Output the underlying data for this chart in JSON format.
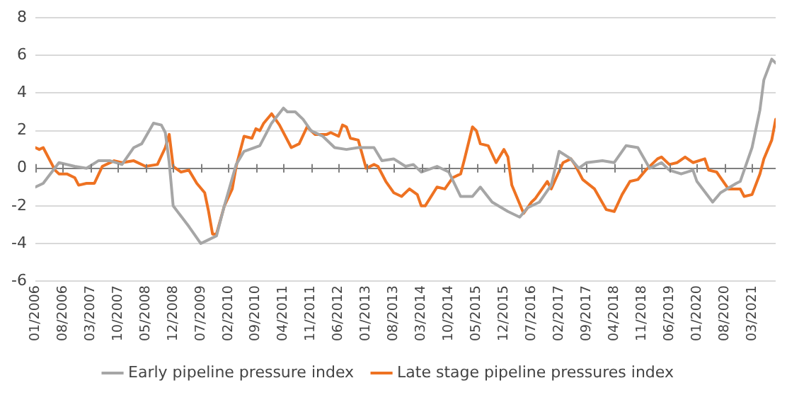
{
  "chart_data": {
    "type": "line",
    "ylim": [
      -6,
      8
    ],
    "yticks": [
      -6,
      -4,
      -2,
      0,
      2,
      4,
      6,
      8
    ],
    "xlim": [
      "2006-01",
      "2021-09"
    ],
    "xticks": [
      {
        "value": "2006-01",
        "label": "01/2006"
      },
      {
        "value": "2006-08",
        "label": "08/2006"
      },
      {
        "value": "2007-03",
        "label": "03/2007"
      },
      {
        "value": "2007-10",
        "label": "10/2007"
      },
      {
        "value": "2008-05",
        "label": "05/2008"
      },
      {
        "value": "2008-12",
        "label": "12/2008"
      },
      {
        "value": "2009-07",
        "label": "07/2009"
      },
      {
        "value": "2010-02",
        "label": "02/2010"
      },
      {
        "value": "2010-09",
        "label": "09/2010"
      },
      {
        "value": "2011-04",
        "label": "04/2011"
      },
      {
        "value": "2011-11",
        "label": "11/2011"
      },
      {
        "value": "2012-06",
        "label": "06/2012"
      },
      {
        "value": "2013-01",
        "label": "01/2013"
      },
      {
        "value": "2013-08",
        "label": "08/2013"
      },
      {
        "value": "2014-03",
        "label": "03/2014"
      },
      {
        "value": "2014-10",
        "label": "10/2014"
      },
      {
        "value": "2015-05",
        "label": "05/2015"
      },
      {
        "value": "2015-12",
        "label": "12/2015"
      },
      {
        "value": "2016-07",
        "label": "07/2016"
      },
      {
        "value": "2017-02",
        "label": "02/2017"
      },
      {
        "value": "2017-09",
        "label": "09/2017"
      },
      {
        "value": "2018-04",
        "label": "04/2018"
      },
      {
        "value": "2018-11",
        "label": "11/2018"
      },
      {
        "value": "2019-06",
        "label": "06/2019"
      },
      {
        "value": "2020-01",
        "label": "01/2020"
      },
      {
        "value": "2020-08",
        "label": "08/2020"
      },
      {
        "value": "2021-03",
        "label": "03/2021"
      }
    ],
    "grid": "y",
    "legend": "bottom",
    "marker": "none",
    "line_style": "solid",
    "series": [
      {
        "name": "Early pipeline pressure index",
        "color": "#a6a6a6",
        "x": [
          "2006-01",
          "2006-03",
          "2006-07",
          "2006-11",
          "2007-02",
          "2007-05",
          "2007-08",
          "2007-11",
          "2008-02",
          "2008-04",
          "2008-07",
          "2008-09",
          "2008-10",
          "2008-11",
          "2008-12",
          "2009-04",
          "2009-07",
          "2009-09",
          "2009-11",
          "2010-01",
          "2010-04",
          "2010-06",
          "2010-10",
          "2011-01",
          "2011-04",
          "2011-05",
          "2011-07",
          "2011-09",
          "2011-11",
          "2012-02",
          "2012-05",
          "2012-08",
          "2012-11",
          "2013-03",
          "2013-05",
          "2013-08",
          "2013-11",
          "2014-01",
          "2014-03",
          "2014-07",
          "2014-10",
          "2015-01",
          "2015-04",
          "2015-06",
          "2015-09",
          "2016-01",
          "2016-04",
          "2016-06",
          "2016-09",
          "2016-12",
          "2017-02",
          "2017-05",
          "2017-07",
          "2017-09",
          "2018-01",
          "2018-04",
          "2018-07",
          "2018-10",
          "2019-01",
          "2019-04",
          "2019-06",
          "2019-09",
          "2019-12",
          "2020-01",
          "2020-05",
          "2020-07",
          "2020-11",
          "2020-12",
          "2021-03",
          "2021-05",
          "2021-06",
          "2021-08",
          "2021-09"
        ],
        "values": [
          -1.0,
          -0.8,
          0.3,
          0.1,
          0.0,
          0.4,
          0.4,
          0.2,
          1.1,
          1.3,
          2.4,
          2.3,
          1.9,
          0.3,
          -2.0,
          -3.1,
          -4.0,
          -3.8,
          -3.6,
          -2.0,
          0.2,
          0.9,
          1.2,
          2.4,
          3.2,
          3.0,
          3.0,
          2.6,
          2.0,
          1.7,
          1.1,
          1.0,
          1.1,
          1.1,
          0.4,
          0.5,
          0.1,
          0.2,
          -0.2,
          0.1,
          -0.2,
          -1.5,
          -1.5,
          -1.0,
          -1.8,
          -2.3,
          -2.6,
          -2.1,
          -1.8,
          -0.9,
          0.9,
          0.5,
          0.0,
          0.3,
          0.4,
          0.3,
          1.2,
          1.1,
          0.0,
          0.3,
          -0.1,
          -0.3,
          -0.1,
          -0.7,
          -1.8,
          -1.3,
          -0.8,
          -0.7,
          1.1,
          3.1,
          4.7,
          5.8,
          5.6
        ]
      },
      {
        "name": "Late stage pipeline pressures index",
        "color": "#ee7222",
        "x": [
          "2006-01",
          "2006-02",
          "2006-03",
          "2006-06",
          "2006-07",
          "2006-09",
          "2006-11",
          "2006-12",
          "2007-02",
          "2007-04",
          "2007-06",
          "2007-09",
          "2007-11",
          "2008-02",
          "2008-05",
          "2008-08",
          "2008-10",
          "2008-11",
          "2008-12",
          "2009-02",
          "2009-04",
          "2009-06",
          "2009-08",
          "2009-09",
          "2009-10",
          "2009-11",
          "2010-01",
          "2010-03",
          "2010-04",
          "2010-06",
          "2010-08",
          "2010-09",
          "2010-10",
          "2010-11",
          "2011-01",
          "2011-03",
          "2011-06",
          "2011-08",
          "2011-10",
          "2011-12",
          "2012-03",
          "2012-04",
          "2012-06",
          "2012-07",
          "2012-08",
          "2012-09",
          "2012-11",
          "2013-01",
          "2013-03",
          "2013-04",
          "2013-06",
          "2013-08",
          "2013-10",
          "2013-12",
          "2014-02",
          "2014-03",
          "2014-04",
          "2014-07",
          "2014-09",
          "2014-11",
          "2015-01",
          "2015-02",
          "2015-04",
          "2015-05",
          "2015-06",
          "2015-08",
          "2015-10",
          "2015-12",
          "2016-01",
          "2016-02",
          "2016-05",
          "2016-07",
          "2016-08",
          "2016-11",
          "2016-12",
          "2017-03",
          "2017-05",
          "2017-06",
          "2017-08",
          "2017-11",
          "2018-02",
          "2018-04",
          "2018-06",
          "2018-08",
          "2018-10",
          "2018-12",
          "2019-03",
          "2019-04",
          "2019-06",
          "2019-08",
          "2019-10",
          "2019-12",
          "2020-03",
          "2020-04",
          "2020-06",
          "2020-09",
          "2020-12",
          "2021-01",
          "2021-03",
          "2021-05",
          "2021-06",
          "2021-08",
          "2021-09"
        ],
        "values": [
          1.1,
          1.0,
          1.1,
          -0.1,
          -0.3,
          -0.3,
          -0.5,
          -0.9,
          -0.8,
          -0.8,
          0.1,
          0.4,
          0.3,
          0.4,
          0.1,
          0.2,
          1.1,
          1.8,
          0.1,
          -0.2,
          -0.1,
          -0.8,
          -1.3,
          -2.3,
          -3.5,
          -3.5,
          -2.0,
          -1.1,
          0.1,
          1.7,
          1.6,
          2.1,
          2.0,
          2.4,
          2.9,
          2.3,
          1.1,
          1.3,
          2.2,
          1.8,
          1.8,
          1.9,
          1.7,
          2.3,
          2.2,
          1.6,
          1.5,
          0.0,
          0.2,
          0.1,
          -0.7,
          -1.3,
          -1.5,
          -1.1,
          -1.4,
          -2.0,
          -2.0,
          -1.0,
          -1.1,
          -0.5,
          -0.3,
          0.5,
          2.2,
          2.0,
          1.3,
          1.2,
          0.3,
          1.0,
          0.6,
          -0.9,
          -2.4,
          -1.8,
          -1.6,
          -0.7,
          -1.1,
          0.3,
          0.5,
          0.2,
          -0.6,
          -1.1,
          -2.2,
          -2.3,
          -1.4,
          -0.7,
          -0.6,
          -0.1,
          0.5,
          0.6,
          0.2,
          0.3,
          0.6,
          0.3,
          0.5,
          -0.1,
          -0.2,
          -1.1,
          -1.1,
          -1.5,
          -1.4,
          -0.3,
          0.5,
          1.5,
          2.6
        ]
      }
    ]
  }
}
